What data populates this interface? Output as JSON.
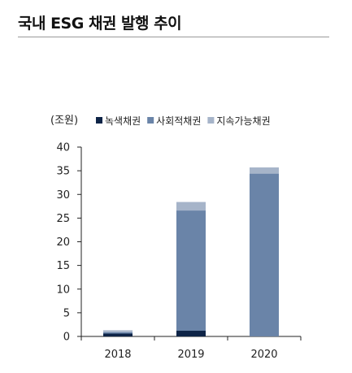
{
  "header": {
    "title": "국내 ESG 채권 발행 추이"
  },
  "chart_data": {
    "type": "bar",
    "stacked": true,
    "unit_label": "(조원)",
    "categories": [
      "2018",
      "2019",
      "2020"
    ],
    "series": [
      {
        "name": "녹색채권",
        "color": "#0e2447",
        "values": [
          0.6,
          1.2,
          0.0
        ]
      },
      {
        "name": "사회적채권",
        "color": "#6a84a8",
        "values": [
          0.3,
          25.4,
          34.4
        ]
      },
      {
        "name": "지속가능채권",
        "color": "#a6b4c9",
        "values": [
          0.4,
          1.8,
          1.3
        ]
      }
    ],
    "ylim": [
      0,
      40
    ],
    "yticks": [
      "0",
      "5",
      "10",
      "15",
      "20",
      "25",
      "30",
      "35",
      "40"
    ],
    "legend_position": "top",
    "grid": false
  }
}
